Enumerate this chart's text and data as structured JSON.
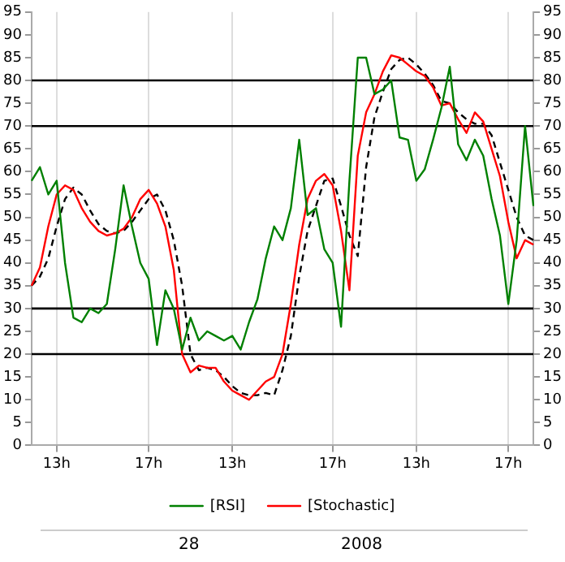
{
  "chart_data": {
    "type": "line",
    "categories": [
      null,
      null,
      null,
      "13h",
      null,
      null,
      null,
      null,
      null,
      null,
      null,
      null,
      null,
      null,
      "17h",
      null,
      null,
      null,
      null,
      null,
      null,
      null,
      null,
      null,
      "13h",
      null,
      null,
      null,
      null,
      null,
      null,
      null,
      null,
      null,
      null,
      null,
      "17h",
      null,
      null,
      null,
      null,
      null,
      null,
      null,
      null,
      null,
      "13h",
      null,
      null,
      null,
      null,
      null,
      null,
      null,
      null,
      null,
      null,
      "17h",
      null,
      null,
      null
    ],
    "ylim": [
      0,
      95
    ],
    "yticks": [
      0,
      5,
      10,
      15,
      20,
      25,
      30,
      35,
      40,
      45,
      50,
      55,
      60,
      65,
      70,
      75,
      80,
      85,
      90,
      95
    ],
    "y2lim": [
      0,
      95
    ],
    "y2ticks": [
      0,
      5,
      10,
      15,
      20,
      25,
      30,
      35,
      40,
      45,
      50,
      55,
      60,
      65,
      70,
      75,
      80,
      85,
      90,
      95
    ],
    "grid": "x",
    "legend": "bottom",
    "marker": "none",
    "annotations": [
      "28",
      "2008"
    ],
    "ref_lines": [
      {
        "axis": "y",
        "value": 20,
        "color": "#000000"
      },
      {
        "axis": "y",
        "value": 30,
        "color": "#000000"
      },
      {
        "axis": "y",
        "value": 70,
        "color": "#000000"
      },
      {
        "axis": "y",
        "value": 80,
        "color": "#000000"
      }
    ],
    "series": [
      {
        "name": "[RSI]",
        "color": "#008000",
        "line_style": "solid",
        "values": [
          58,
          61,
          55,
          58,
          40,
          28,
          27,
          30,
          29,
          31,
          43,
          57,
          48,
          40,
          36.5,
          22,
          34,
          30,
          21,
          28,
          23,
          25,
          24,
          23,
          24,
          21,
          27,
          32,
          41,
          48,
          45,
          52,
          67,
          50.5,
          52,
          43,
          40,
          26,
          58,
          85,
          85,
          77,
          78,
          80,
          67.5,
          67,
          58,
          60.5,
          67,
          74,
          83,
          66,
          62.5,
          67,
          63.5,
          54,
          46,
          31,
          45,
          70,
          52.5
        ]
      },
      {
        "name": "[Stochastic]",
        "color": "#ff0000",
        "line_style": "solid",
        "values": [
          35,
          39,
          48,
          55,
          57,
          56,
          52,
          49,
          47,
          46,
          46.5,
          47.5,
          50,
          54,
          56,
          53,
          48,
          38.5,
          20,
          16,
          17.5,
          17,
          17,
          14,
          12,
          11,
          10,
          12,
          14,
          15,
          20,
          31,
          44,
          54,
          58,
          59.5,
          57,
          47,
          34,
          63.5,
          73,
          77,
          82,
          85.5,
          85,
          83.5,
          82,
          81,
          78.5,
          74.5,
          75,
          71.5,
          68.5,
          73,
          71,
          65,
          59,
          49,
          41,
          45,
          44
        ]
      },
      {
        "color": "#000000",
        "line_style": "dashed",
        "values": [
          35,
          37,
          41,
          48,
          54,
          56.5,
          55,
          51.5,
          48.5,
          47,
          46.5,
          47,
          49,
          51.5,
          54,
          55,
          51.5,
          45,
          35,
          20,
          16.5,
          17,
          16.5,
          15,
          13,
          11.5,
          11,
          11,
          11.5,
          11,
          16.5,
          24,
          37,
          47,
          52.5,
          58,
          58.5,
          52.5,
          46,
          41.5,
          61,
          72,
          77.5,
          82.5,
          84.5,
          85,
          83.5,
          81.5,
          79,
          75.5,
          75,
          73,
          71.5,
          70.5,
          70.5,
          68,
          62,
          56,
          50,
          46,
          45
        ]
      }
    ]
  }
}
